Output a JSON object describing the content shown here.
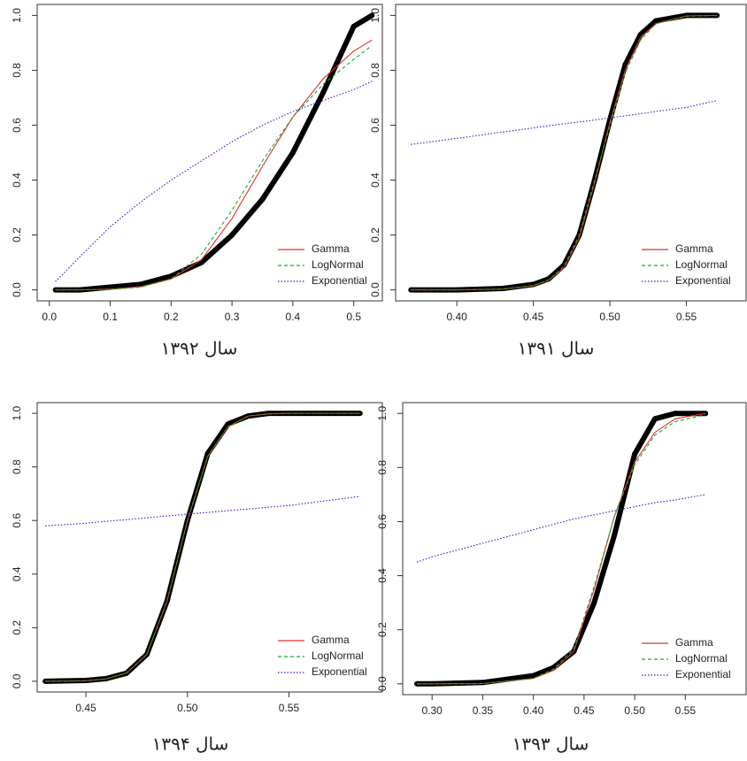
{
  "chart_data": [
    {
      "type": "line",
      "title": "سال ۱۳۹۲",
      "legend": "bottomright",
      "x": [
        0.01,
        0.05,
        0.1,
        0.15,
        0.2,
        0.25,
        0.3,
        0.35,
        0.4,
        0.45,
        0.5,
        0.53
      ],
      "series": [
        {
          "color": "#000000",
          "style": "points",
          "values": [
            0,
            0,
            0.01,
            0.02,
            0.05,
            0.1,
            0.2,
            0.33,
            0.5,
            0.72,
            0.96,
            1.0
          ]
        },
        {
          "name": "Gamma",
          "color": "#e03030",
          "style": "solid",
          "values": [
            0,
            0,
            0.003,
            0.012,
            0.04,
            0.11,
            0.26,
            0.45,
            0.63,
            0.77,
            0.87,
            0.91
          ]
        },
        {
          "name": "LogNormal",
          "color": "#22aa22",
          "style": "dashed",
          "values": [
            0,
            0,
            0.002,
            0.01,
            0.04,
            0.13,
            0.29,
            0.47,
            0.63,
            0.75,
            0.84,
            0.89
          ]
        },
        {
          "name": "Exponential",
          "color": "#2222cc",
          "style": "dotted",
          "values": [
            0.03,
            0.12,
            0.23,
            0.32,
            0.4,
            0.47,
            0.54,
            0.6,
            0.65,
            0.69,
            0.73,
            0.76
          ]
        }
      ],
      "xlim": [
        -0.02,
        0.547
      ],
      "ylim": [
        -0.04,
        1.04
      ],
      "xticks": [
        {
          "value": 0,
          "label": "0.0"
        },
        0.1,
        0.2,
        0.3,
        0.4,
        0.5
      ],
      "yticks": [
        {
          "value": 0,
          "label": "0.0"
        },
        0.2,
        0.4,
        0.6,
        0.8,
        {
          "value": 1,
          "label": "1.0"
        }
      ]
    },
    {
      "type": "line",
      "title": "سال ۱۳۹۱",
      "legend": "bottomright",
      "x": [
        0.37,
        0.4,
        0.43,
        0.45,
        0.46,
        0.47,
        0.48,
        0.49,
        0.5,
        0.51,
        0.52,
        0.53,
        0.55,
        0.57
      ],
      "series": [
        {
          "color": "#000000",
          "style": "points",
          "values": [
            0,
            0,
            0.005,
            0.02,
            0.04,
            0.09,
            0.2,
            0.4,
            0.62,
            0.82,
            0.93,
            0.98,
            1.0,
            1.0
          ]
        },
        {
          "name": "Gamma",
          "color": "#e03030",
          "style": "solid",
          "values": [
            0,
            0,
            0.003,
            0.015,
            0.035,
            0.08,
            0.19,
            0.39,
            0.61,
            0.8,
            0.92,
            0.97,
            0.998,
            1.0
          ]
        },
        {
          "name": "LogNormal",
          "color": "#22aa22",
          "style": "dashed",
          "values": [
            0,
            0,
            0.003,
            0.016,
            0.036,
            0.085,
            0.2,
            0.4,
            0.6,
            0.79,
            0.91,
            0.97,
            0.997,
            1.0
          ]
        },
        {
          "name": "Exponential",
          "color": "#2222cc",
          "style": "dotted",
          "values": [
            0.53,
            0.552,
            0.575,
            0.59,
            0.598,
            0.605,
            0.612,
            0.619,
            0.627,
            0.634,
            0.642,
            0.65,
            0.665,
            0.69
          ]
        }
      ],
      "xlim": [
        0.36,
        0.589
      ],
      "ylim": [
        -0.04,
        1.04
      ],
      "xticks": [
        {
          "value": 0.4,
          "label": "0.40"
        },
        0.45,
        {
          "value": 0.5,
          "label": "0.50"
        },
        0.55
      ],
      "yticks": [
        {
          "value": 0,
          "label": "0.0"
        },
        0.2,
        0.4,
        0.6,
        0.8,
        {
          "value": 1,
          "label": "1.0"
        }
      ]
    },
    {
      "type": "line",
      "title": "سال ۱۳۹۴",
      "legend": "bottomright",
      "x": [
        0.43,
        0.45,
        0.46,
        0.47,
        0.48,
        0.49,
        0.5,
        0.51,
        0.52,
        0.53,
        0.54,
        0.55,
        0.585
      ],
      "series": [
        {
          "color": "#000000",
          "style": "points",
          "values": [
            0,
            0.003,
            0.01,
            0.03,
            0.1,
            0.3,
            0.6,
            0.85,
            0.96,
            0.99,
            1.0,
            1.0,
            1.0
          ]
        },
        {
          "name": "Gamma",
          "color": "#e03030",
          "style": "solid",
          "values": [
            0,
            0.002,
            0.009,
            0.03,
            0.1,
            0.3,
            0.6,
            0.84,
            0.95,
            0.99,
            0.998,
            1.0,
            1.0
          ]
        },
        {
          "name": "LogNormal",
          "color": "#22aa22",
          "style": "dashed",
          "values": [
            0,
            0.002,
            0.009,
            0.031,
            0.1,
            0.3,
            0.6,
            0.84,
            0.95,
            0.99,
            0.998,
            1.0,
            1.0
          ]
        },
        {
          "name": "Exponential",
          "color": "#2222cc",
          "style": "dotted",
          "values": [
            0.58,
            0.59,
            0.597,
            0.603,
            0.61,
            0.617,
            0.624,
            0.63,
            0.637,
            0.643,
            0.65,
            0.656,
            0.69
          ]
        }
      ],
      "xlim": [
        0.426,
        0.596
      ],
      "ylim": [
        -0.04,
        1.04
      ],
      "xticks": [
        0.45,
        {
          "value": 0.5,
          "label": "0.50"
        },
        0.55
      ],
      "yticks": [
        {
          "value": 0,
          "label": "0.0"
        },
        0.2,
        0.4,
        0.6,
        0.8,
        {
          "value": 1,
          "label": "1.0"
        }
      ]
    },
    {
      "type": "line",
      "title": "سال ۱۳۹۳",
      "legend": "bottomright",
      "x": [
        0.285,
        0.3,
        0.35,
        0.4,
        0.42,
        0.44,
        0.46,
        0.48,
        0.5,
        0.52,
        0.54,
        0.57
      ],
      "series": [
        {
          "color": "#000000",
          "style": "points",
          "values": [
            0,
            0,
            0.005,
            0.03,
            0.06,
            0.12,
            0.3,
            0.55,
            0.85,
            0.98,
            1.0,
            1.0
          ]
        },
        {
          "name": "Gamma",
          "color": "#e03030",
          "style": "solid",
          "values": [
            0,
            0,
            0.001,
            0.02,
            0.05,
            0.12,
            0.35,
            0.62,
            0.82,
            0.93,
            0.98,
            1.0
          ]
        },
        {
          "name": "LogNormal",
          "color": "#22aa22",
          "style": "dashed",
          "values": [
            0,
            0,
            0.001,
            0.02,
            0.055,
            0.13,
            0.36,
            0.62,
            0.81,
            0.92,
            0.97,
            0.995
          ]
        },
        {
          "name": "Exponential",
          "color": "#2222cc",
          "style": "dotted",
          "values": [
            0.45,
            0.47,
            0.52,
            0.57,
            0.59,
            0.61,
            0.625,
            0.64,
            0.655,
            0.67,
            0.68,
            0.7
          ]
        }
      ],
      "xlim": [
        0.271,
        0.61
      ],
      "ylim": [
        -0.04,
        1.04
      ],
      "xticks": [
        {
          "value": 0.3,
          "label": "0.30"
        },
        0.35,
        {
          "value": 0.4,
          "label": "0.40"
        },
        0.45,
        {
          "value": 0.5,
          "label": "0.50"
        },
        0.55
      ],
      "yticks": [
        {
          "value": 0,
          "label": "0.0"
        },
        0.2,
        0.4,
        0.6,
        0.8,
        {
          "value": 1,
          "label": "1.0"
        }
      ]
    }
  ]
}
